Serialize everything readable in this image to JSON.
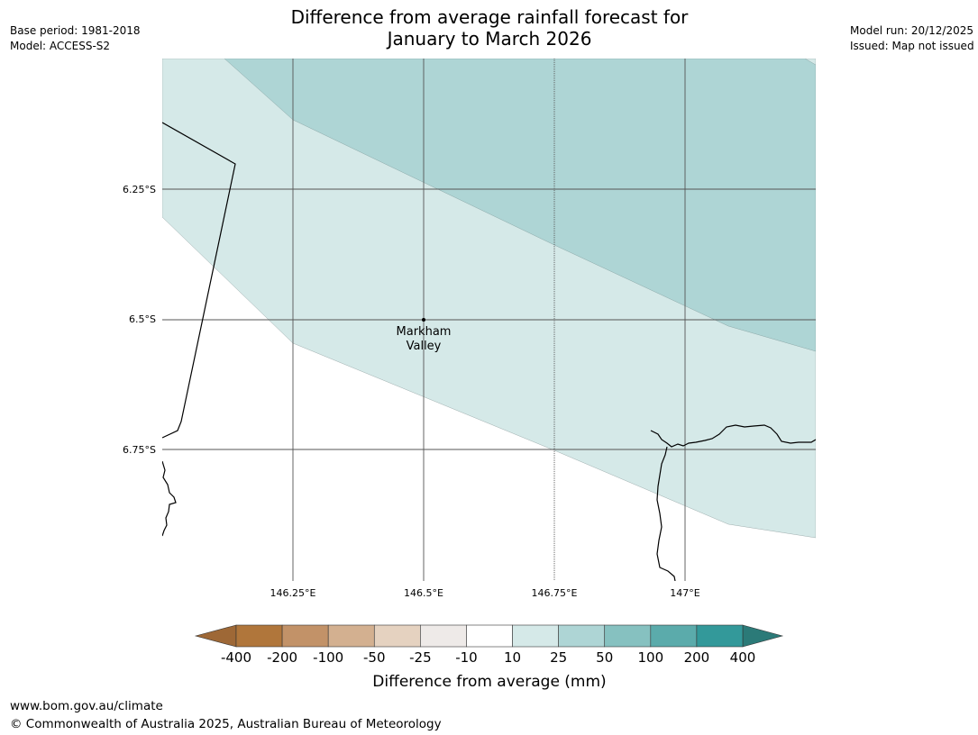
{
  "header": {
    "title_line1": "Difference from average rainfall forecast for",
    "title_line2": "January to March 2026",
    "base_period": "Base period: 1981-2018",
    "model": "Model: ACCESS-S2",
    "model_run": "Model run: 20/12/2025",
    "issued": "Issued: Map not issued"
  },
  "map": {
    "lat_labels": [
      "6.25°S",
      "6.5°S",
      "6.75°S"
    ],
    "lon_labels": [
      "146.25°E",
      "146.5°E",
      "146.75°E",
      "147°E"
    ],
    "place": {
      "name_line1": "Markham",
      "name_line2": "Valley"
    },
    "colors": {
      "band_10_25": "#d5e9e8",
      "band_25_50": "#aed5d5",
      "line": "#000000",
      "grid": "#555555"
    }
  },
  "legend": {
    "ticks": [
      "-400",
      "-200",
      "-100",
      "-50",
      "-25",
      "-10",
      "10",
      "25",
      "50",
      "100",
      "200",
      "400"
    ],
    "colors": [
      "#9e6836",
      "#b0763b",
      "#c29268",
      "#d3b090",
      "#e5d2c0",
      "#eeeae8",
      "#ffffff",
      "#d5e9e8",
      "#aed5d5",
      "#86c1c0",
      "#5babab",
      "#33999a",
      "#2b7a78"
    ],
    "label": "Difference from average (mm)"
  },
  "footer": {
    "website": "www.bom.gov.au/climate",
    "copyright": "© Commonwealth of Australia 2025, Australian Bureau of Meteorology"
  }
}
